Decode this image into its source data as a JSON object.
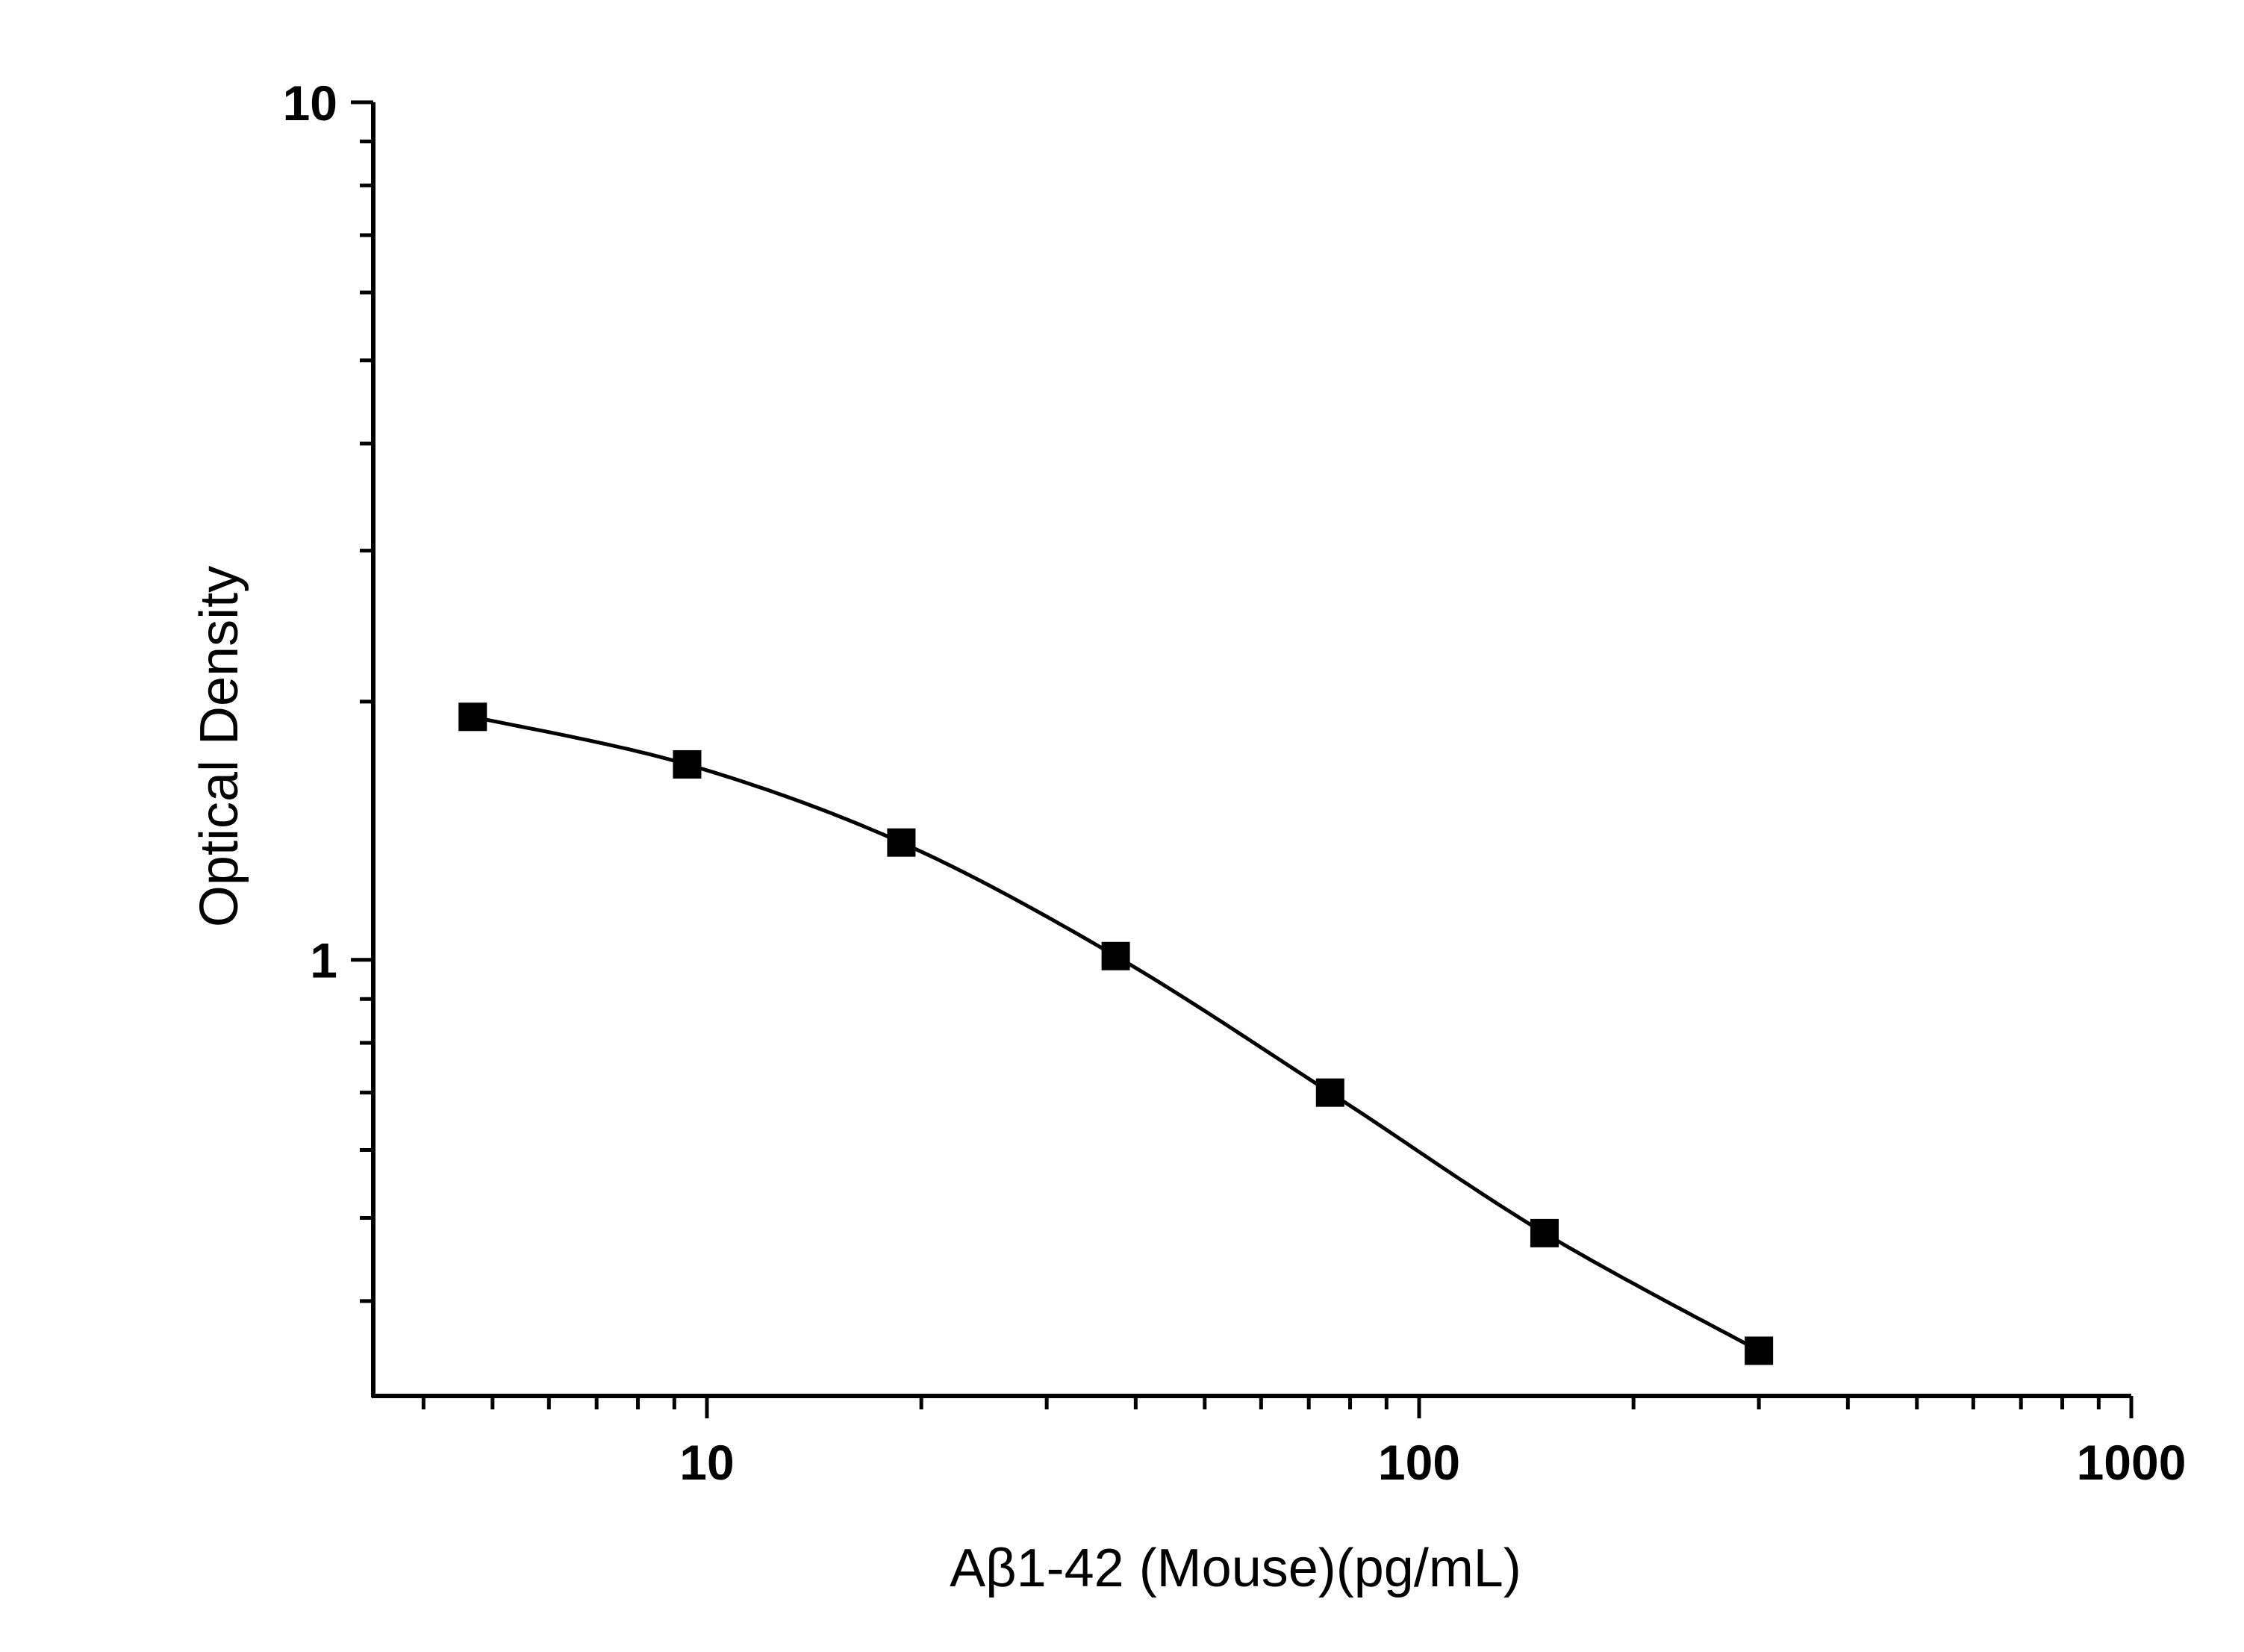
{
  "chart_data": {
    "type": "scatter",
    "title": "",
    "xlabel": "Aβ1-42 (Mouse)(pg/mL)",
    "ylabel": "Optical Density",
    "x_scale": "log",
    "y_scale": "log",
    "xlim": [
      3.4,
      1000
    ],
    "ylim": [
      0.31,
      10
    ],
    "x_tick_labels": [
      "10",
      "100",
      "1000"
    ],
    "y_tick_labels": [
      "1",
      "10"
    ],
    "grid": false,
    "legend": false,
    "series": [
      {
        "x": [
          4.69,
          9.38,
          18.75,
          37.5,
          75,
          150,
          300
        ],
        "y": [
          1.92,
          1.69,
          1.37,
          1.01,
          0.7,
          0.48,
          0.35
        ]
      }
    ],
    "marker": "square",
    "fit_curve": "smooth",
    "colors": {
      "line": "#000000",
      "marker": "#000000",
      "axis": "#000000"
    }
  }
}
